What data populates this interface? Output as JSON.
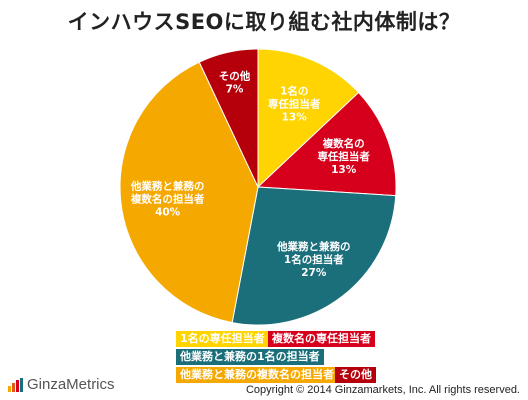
{
  "chart_data": {
    "type": "pie",
    "title": "インハウスSEOに取り組む社内体制は？",
    "slices": [
      {
        "label_lines": [
          "1名の",
          "専任担当者"
        ],
        "legend": "1名の専任担当者",
        "value": 13,
        "value_label": "13%",
        "color": "#FFD400"
      },
      {
        "label_lines": [
          "複数名の",
          "専任担当者"
        ],
        "legend": "複数名の専任担当者",
        "value": 13,
        "value_label": "13%",
        "color": "#D6001C"
      },
      {
        "label_lines": [
          "他業務と兼務の",
          "1名の担当者"
        ],
        "legend": "他業務と兼務の1名の担当者",
        "value": 27,
        "value_label": "27%",
        "color": "#1B6F7A"
      },
      {
        "label_lines": [
          "他業務と兼務の",
          "複数名の担当者"
        ],
        "legend": "他業務と兼務の複数名の担当者",
        "value": 40,
        "value_label": "40%",
        "color": "#F5A800"
      },
      {
        "label_lines": [
          "その他"
        ],
        "legend": "その他",
        "value": 7,
        "value_label": "7%",
        "color": "#B5000B"
      }
    ],
    "legend_placement": "bottom-center"
  },
  "footer": {
    "logo_text": "GinzaMetrics",
    "copyright": "Copyright © 2014 Ginzamarkets, Inc. All rights reserved."
  }
}
